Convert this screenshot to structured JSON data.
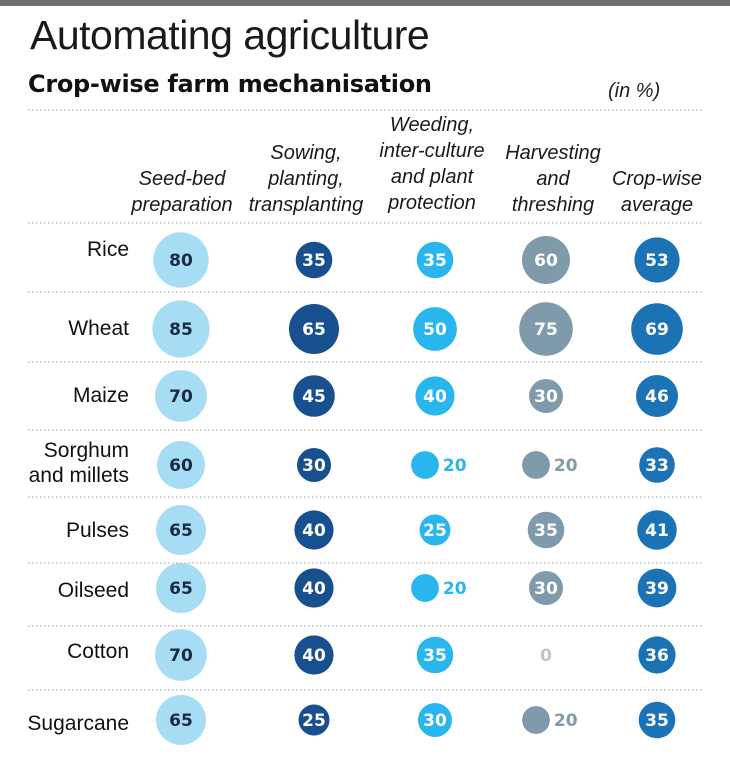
{
  "title": "Automating agriculture",
  "subtitle": "Crop-wise farm mechanisation",
  "units": "(in %)",
  "colors": {
    "seedbed": "#a6dcf4",
    "sowing": "#174f8f",
    "weeding": "#29b6ee",
    "harvesting": "#7f9aaa",
    "average": "#1b73b5",
    "dark_text": "#1a2b45",
    "light_text": "#ffffff",
    "zero_text": "#b8c6d0",
    "divider": "#9a9a9a"
  },
  "chart_data": {
    "type": "table",
    "title": "Crop-wise farm mechanisation",
    "units": "%",
    "columns": [
      "Seed-bed\npreparation",
      "Sowing,\nplanting,\ntransplanting",
      "Weeding,\ninter-culture\nand plant\nprotection",
      "Harvesting\nand\nthreshing",
      "Crop-wise\naverage"
    ],
    "rows": [
      "Rice",
      "Wheat",
      "Maize",
      "Sorghum\nand millets",
      "Pulses",
      "Oilseed",
      "Cotton",
      "Sugarcane"
    ],
    "values": [
      [
        80,
        35,
        35,
        60,
        53
      ],
      [
        85,
        65,
        50,
        75,
        69
      ],
      [
        70,
        45,
        40,
        30,
        46
      ],
      [
        60,
        30,
        20,
        20,
        33
      ],
      [
        65,
        40,
        25,
        35,
        41
      ],
      [
        65,
        40,
        20,
        30,
        39
      ],
      [
        70,
        40,
        35,
        0,
        36
      ],
      [
        65,
        25,
        30,
        20,
        35
      ]
    ]
  }
}
